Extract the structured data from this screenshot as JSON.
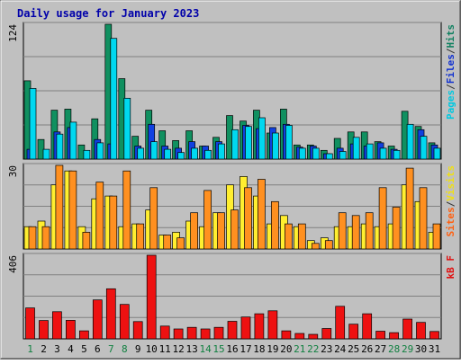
{
  "chart_data": {
    "type": "bar",
    "title": "Daily usage for January 2023",
    "categories": [
      "1",
      "2",
      "3",
      "4",
      "5",
      "6",
      "7",
      "8",
      "9",
      "10",
      "11",
      "12",
      "13",
      "14",
      "15",
      "16",
      "17",
      "18",
      "19",
      "20",
      "21",
      "22",
      "23",
      "24",
      "25",
      "26",
      "27",
      "28",
      "29",
      "30",
      "31"
    ],
    "weekend_days": [
      "1",
      "7",
      "8",
      "14",
      "15",
      "21",
      "22",
      "28",
      "29"
    ],
    "panels": [
      {
        "name": "hits-files-pages",
        "ymax_label": "124",
        "ymax": 124,
        "labels": [
          "Pages",
          "/",
          "Files",
          "/",
          "Hits"
        ],
        "label_colors": [
          "#00c8e0",
          "#333333",
          "#1030d0",
          "#333333",
          "#108060"
        ],
        "series": [
          {
            "name": "Hits",
            "color": "#109060",
            "values": [
              72,
              18,
              45,
              46,
              13,
              37,
              124,
              74,
              21,
              45,
              26,
              17,
              26,
              12,
              20,
              40,
              35,
              45,
              24,
              46,
              13,
              13,
              8,
              19,
              25,
              25,
              16,
              12,
              44,
              30,
              15
            ]
          },
          {
            "name": "Files",
            "color": "#1040e0",
            "values": [
              9,
              0,
              25,
              29,
              0,
              18,
              14,
              0,
              12,
              32,
              12,
              10,
              16,
              12,
              16,
              0,
              31,
              28,
              29,
              32,
              11,
              12,
              5,
              10,
              14,
              12,
              15,
              9,
              0,
              27,
              13
            ]
          },
          {
            "name": "Pages",
            "color": "#00d8f0",
            "values": [
              65,
              9,
              23,
              34,
              8,
              15,
              111,
              56,
              10,
              16,
              9,
              6,
              10,
              8,
              14,
              27,
              30,
              38,
              24,
              31,
              10,
              10,
              5,
              7,
              20,
              14,
              10,
              8,
              32,
              21,
              10
            ]
          }
        ]
      },
      {
        "name": "sites-visits",
        "ymax_label": "30",
        "ymax": 30,
        "labels": [
          "Sites",
          "/",
          "Visits"
        ],
        "label_colors": [
          "#ff6010",
          "#333333",
          "#f0e010"
        ],
        "series": [
          {
            "name": "Visits",
            "color": "#ffee30",
            "values": [
              8,
              10,
              23,
              28,
              8,
              18,
              19,
              8,
              9,
              14,
              5,
              6,
              10,
              8,
              13,
              23,
              26,
              19,
              9,
              12,
              8,
              3,
              4,
              8,
              8,
              9,
              8,
              9,
              23,
              17,
              6
            ]
          },
          {
            "name": "Sites",
            "color": "#ff9020",
            "values": [
              8,
              8,
              30,
              28,
              6,
              24,
              19,
              28,
              9,
              22,
              5,
              4,
              13,
              21,
              13,
              14,
              22,
              25,
              17,
              9,
              9,
              2,
              3,
              13,
              12,
              13,
              22,
              15,
              29,
              22,
              9
            ]
          }
        ]
      },
      {
        "name": "kbf",
        "ymax_label": "406",
        "ymax": 406,
        "labels": [
          "kB F"
        ],
        "label_colors": [
          "#e01010"
        ],
        "series": [
          {
            "name": "kB F",
            "color": "#ee1111",
            "values": [
              150,
              89,
              132,
              90,
              39,
              189,
              243,
              167,
              84,
              406,
              62,
              48,
              56,
              48,
              56,
              85,
              106,
              122,
              136,
              39,
              26,
              22,
              50,
              158,
              71,
              122,
              37,
              30,
              96,
              80,
              36
            ]
          }
        ]
      }
    ]
  }
}
